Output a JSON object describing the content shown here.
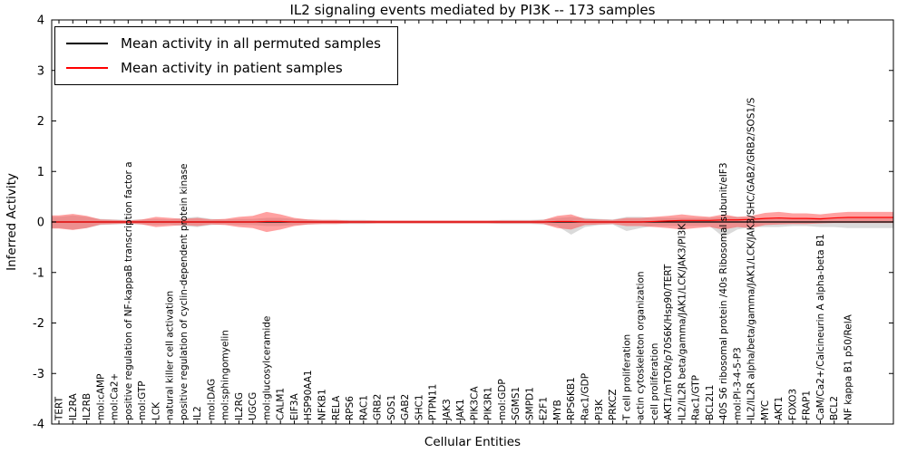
{
  "legend": {
    "items": [
      {
        "label": "Mean activity in all permuted samples",
        "color": "#000000"
      },
      {
        "label": "Mean activity in patient samples",
        "color": "#ff0000"
      }
    ],
    "position": "upper left"
  },
  "chart_data": {
    "type": "area",
    "subtype": "distribution-bands-with-mean-lines",
    "title": "IL2 signaling events mediated by PI3K -- 173 samples",
    "xlabel": "Cellular Entities",
    "ylabel": "Inferred Activity",
    "ylim": [
      -4,
      4
    ],
    "yticks": [
      4,
      3,
      2,
      1,
      0,
      -1,
      -2,
      -3,
      -4
    ],
    "grid": false,
    "categories": [
      "TERT",
      "IL2RA",
      "IL2RB",
      "mol:cAMP",
      "mol:Ca2+",
      "positive regulation of NF-kappaB transcription factor a",
      "mol:GTP",
      "LCK",
      "natural killer cell activation",
      "positive regulation of cyclin-dependent protein kinase",
      "IL2",
      "mol:DAG",
      "mol:sphingomyelin",
      "IL2RG",
      "UGCG",
      "mol:glucosylceramide",
      "CALM1",
      "EIF3A",
      "HSP90AA1",
      "NFKB1",
      "RELA",
      "RPS6",
      "RAC1",
      "GRB2",
      "SOS1",
      "GAB2",
      "SHC1",
      "PTPN11",
      "JAK3",
      "JAK1",
      "PIK3CA",
      "PIK3R1",
      "mol:GDP",
      "SGMS1",
      "SMPD1",
      "E2F1",
      "MYB",
      "RPS6KB1",
      "Rac1/GDP",
      "PI3K",
      "PRKCZ",
      "T cell proliferation",
      "actin cytoskeleton organization",
      "cell proliferation",
      "AKT1/mTOR/p70S6K/Hsp90/TERT",
      "IL2/IL2R beta/gamma/JAK1/LCK/JAK3/PI3K",
      "Rac1/GTP",
      "BCL2L1",
      "40S S6 ribosomal protein /40s Ribosomal subunit/eIF3",
      "mol:PI-3-4-5-P3",
      "IL2/IL2R alpha/beta/gamma/JAK1/LCK/JAK3/SHC/GAB2/GRB2/SOS1/S",
      "MYC",
      "AKT1",
      "FOXO3",
      "FRAP1",
      "CaM/Ca2+/Calcineurin A alpha-beta B1",
      "BCL2",
      "NF kappa B1 p50/RelA"
    ],
    "series": [
      {
        "name": "Mean activity in all permuted samples",
        "color": "#000000",
        "fill": "#bbbbbb",
        "fill_opacity": 0.55,
        "values": [
          0,
          0,
          0,
          0,
          0,
          0,
          0,
          0,
          0,
          0,
          0,
          0,
          0,
          0,
          0,
          0,
          0,
          0,
          0,
          0,
          0,
          0,
          0,
          0,
          0,
          0,
          0,
          0,
          0,
          0,
          0,
          0,
          0,
          0,
          0,
          0,
          0,
          0,
          0,
          0,
          0,
          0,
          0,
          0,
          0,
          0,
          0,
          0,
          0,
          0,
          0,
          0,
          0,
          0,
          0,
          0,
          0,
          0
        ],
        "band_upper": [
          0.1,
          0.13,
          0.1,
          0.06,
          0.05,
          0.04,
          0.05,
          0.06,
          0.05,
          0.08,
          0.1,
          0.06,
          0.05,
          0.06,
          0.06,
          0.08,
          0.08,
          0.06,
          0.05,
          0.04,
          0.04,
          0.04,
          0.04,
          0.03,
          0.03,
          0.03,
          0.03,
          0.03,
          0.03,
          0.03,
          0.03,
          0.03,
          0.04,
          0.04,
          0.04,
          0.05,
          0.08,
          0.1,
          0.08,
          0.06,
          0.05,
          0.1,
          0.1,
          0.08,
          0.08,
          0.08,
          0.08,
          0.08,
          0.1,
          0.1,
          0.08,
          0.08,
          0.08,
          0.08,
          0.08,
          0.08,
          0.08,
          0.08
        ],
        "band_lower": [
          -0.12,
          -0.15,
          -0.12,
          -0.06,
          -0.05,
          -0.04,
          -0.05,
          -0.06,
          -0.05,
          -0.08,
          -0.1,
          -0.06,
          -0.05,
          -0.06,
          -0.06,
          -0.08,
          -0.08,
          -0.06,
          -0.05,
          -0.04,
          -0.04,
          -0.04,
          -0.04,
          -0.03,
          -0.03,
          -0.03,
          -0.03,
          -0.03,
          -0.03,
          -0.03,
          -0.03,
          -0.03,
          -0.04,
          -0.04,
          -0.04,
          -0.05,
          -0.08,
          -0.25,
          -0.1,
          -0.06,
          -0.05,
          -0.18,
          -0.12,
          -0.08,
          -0.08,
          -0.08,
          -0.08,
          -0.08,
          -0.3,
          -0.15,
          -0.1,
          -0.1,
          -0.1,
          -0.08,
          -0.08,
          -0.1,
          -0.1,
          -0.12
        ]
      },
      {
        "name": "Mean activity in patient samples",
        "color": "#ff0000",
        "fill": "#ff4444",
        "fill_opacity": 0.5,
        "values": [
          0,
          0,
          0,
          0,
          0,
          0,
          0,
          0,
          0,
          0,
          0,
          0,
          0,
          0,
          0,
          0.01,
          0.01,
          0,
          0,
          0,
          0,
          0,
          0,
          0,
          0,
          0,
          0,
          0,
          0,
          0,
          0,
          0,
          0,
          0,
          0,
          0,
          0.01,
          0.01,
          0,
          0,
          0,
          0,
          0,
          0.01,
          0.02,
          0.03,
          0.03,
          0.03,
          0.04,
          0.04,
          0.05,
          0.07,
          0.08,
          0.07,
          0.07,
          0.06,
          0.08,
          0.09
        ],
        "band_upper": [
          0.13,
          0.16,
          0.12,
          0.05,
          0.04,
          0.03,
          0.05,
          0.1,
          0.08,
          0.06,
          0.08,
          0.05,
          0.06,
          0.1,
          0.12,
          0.2,
          0.15,
          0.08,
          0.05,
          0.04,
          0.04,
          0.03,
          0.03,
          0.03,
          0.03,
          0.03,
          0.03,
          0.03,
          0.03,
          0.03,
          0.03,
          0.03,
          0.03,
          0.03,
          0.03,
          0.04,
          0.12,
          0.15,
          0.06,
          0.05,
          0.04,
          0.08,
          0.08,
          0.1,
          0.12,
          0.15,
          0.12,
          0.1,
          0.15,
          0.1,
          0.12,
          0.18,
          0.2,
          0.17,
          0.17,
          0.15,
          0.18,
          0.2
        ],
        "band_lower": [
          -0.13,
          -0.16,
          -0.12,
          -0.05,
          -0.04,
          -0.03,
          -0.05,
          -0.1,
          -0.08,
          -0.06,
          -0.08,
          -0.05,
          -0.06,
          -0.1,
          -0.12,
          -0.2,
          -0.15,
          -0.08,
          -0.05,
          -0.04,
          -0.04,
          -0.03,
          -0.03,
          -0.03,
          -0.03,
          -0.03,
          -0.03,
          -0.03,
          -0.03,
          -0.03,
          -0.03,
          -0.03,
          -0.03,
          -0.03,
          -0.03,
          -0.04,
          -0.12,
          -0.15,
          -0.06,
          -0.05,
          -0.04,
          -0.08,
          -0.08,
          -0.1,
          -0.12,
          -0.15,
          -0.12,
          -0.1,
          -0.15,
          -0.1,
          -0.12,
          -0.06,
          -0.05,
          -0.04,
          -0.04,
          -0.03,
          -0.02,
          -0.02
        ]
      }
    ]
  }
}
